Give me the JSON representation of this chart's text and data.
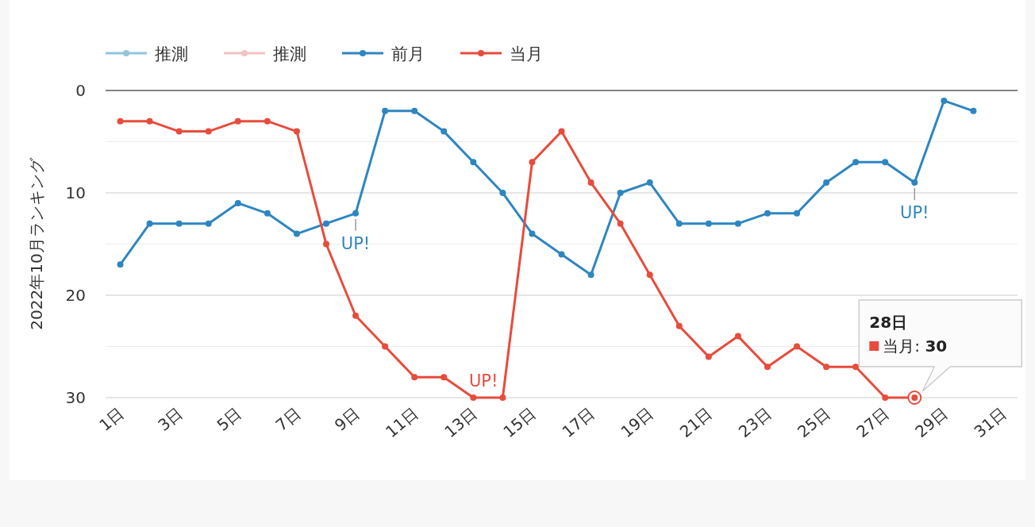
{
  "chart_data": {
    "type": "line",
    "ylabel": "2022年10月ランキング",
    "x": [
      1,
      2,
      3,
      4,
      5,
      6,
      7,
      8,
      9,
      10,
      11,
      12,
      13,
      14,
      15,
      16,
      17,
      18,
      19,
      20,
      21,
      22,
      23,
      24,
      25,
      26,
      27,
      28,
      29,
      30
    ],
    "xlim": [
      0.5,
      31.5
    ],
    "xticks": [
      {
        "value": 1,
        "label": "1日"
      },
      {
        "value": 3,
        "label": "3日"
      },
      {
        "value": 5,
        "label": "5日"
      },
      {
        "value": 7,
        "label": "7日"
      },
      {
        "value": 9,
        "label": "9日"
      },
      {
        "value": 11,
        "label": "11日"
      },
      {
        "value": 13,
        "label": "13日"
      },
      {
        "value": 15,
        "label": "15日"
      },
      {
        "value": 17,
        "label": "17日"
      },
      {
        "value": 19,
        "label": "19日"
      },
      {
        "value": 21,
        "label": "21日"
      },
      {
        "value": 23,
        "label": "23日"
      },
      {
        "value": 25,
        "label": "25日"
      },
      {
        "value": 27,
        "label": "27日"
      },
      {
        "value": 29,
        "label": "29日"
      },
      {
        "value": 31,
        "label": "31日"
      }
    ],
    "ylim": [
      30,
      0
    ],
    "yticks": [
      0,
      {
        "value": 5,
        "label": null
      },
      10,
      {
        "value": 15,
        "label": null
      },
      20,
      {
        "value": 25,
        "label": null
      },
      30
    ],
    "grid": "y",
    "legend": "top left",
    "marker": "circle",
    "line_style": "solid",
    "series": [
      {
        "name": "推測",
        "color": "#92c5de",
        "values": [
          null,
          null,
          null,
          null,
          null,
          null,
          null,
          null,
          null,
          null,
          null,
          null,
          null,
          null,
          null,
          null,
          null,
          null,
          null,
          null,
          null,
          null,
          null,
          null,
          null,
          null,
          null,
          null,
          null,
          null
        ]
      },
      {
        "name": "推測",
        "color": "#f4c2c4",
        "values": [
          null,
          null,
          null,
          null,
          null,
          null,
          null,
          null,
          null,
          null,
          null,
          null,
          null,
          null,
          null,
          null,
          null,
          null,
          null,
          null,
          null,
          null,
          null,
          null,
          null,
          null,
          null,
          null,
          null,
          null
        ]
      },
      {
        "name": "前月",
        "color": "#2e86c1",
        "values": [
          17,
          13,
          13,
          13,
          11,
          12,
          14,
          13,
          12,
          2,
          2,
          4,
          7,
          10,
          14,
          16,
          18,
          10,
          9,
          13,
          13,
          13,
          12,
          12,
          9,
          7,
          7,
          9,
          1,
          2
        ]
      },
      {
        "name": "当月",
        "color": "#e74c3c",
        "values": [
          3,
          3,
          4,
          4,
          3,
          3,
          4,
          15,
          22,
          25,
          28,
          28,
          30,
          30,
          7,
          4,
          9,
          13,
          18,
          23,
          26,
          24,
          27,
          25,
          27,
          27,
          30,
          30,
          null,
          null
        ]
      }
    ],
    "annotations": [
      {
        "text": "UP!",
        "x": 9,
        "y": 12
      },
      {
        "text": "UP!",
        "x": 28,
        "y": 9
      },
      {
        "text": "UP!",
        "x": 14,
        "y": 30
      },
      "28日",
      {
        "text": "当月: **30**",
        "x": 28,
        "y": 30
      }
    ]
  }
}
